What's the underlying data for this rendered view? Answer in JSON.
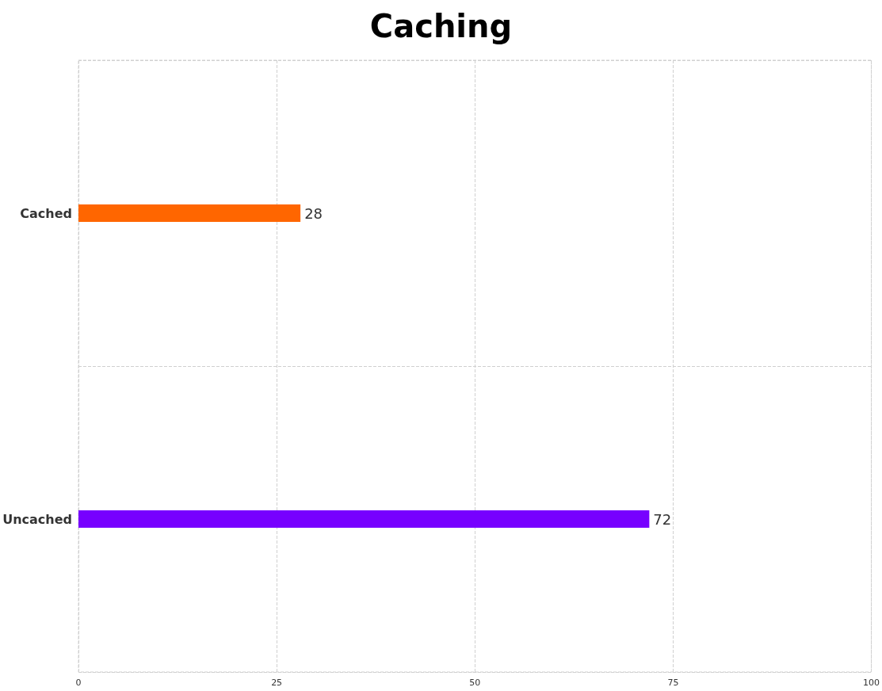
{
  "chart_data": {
    "type": "bar",
    "title": "Caching",
    "orientation": "horizontal",
    "categories": [
      "Cached",
      "Uncached"
    ],
    "values": [
      28,
      72
    ],
    "colors": [
      "#ff6600",
      "#7700ff"
    ],
    "xlim": [
      0,
      100
    ],
    "xticks": [
      0,
      25,
      50,
      75,
      100
    ],
    "grid": true,
    "data_labels": true
  }
}
